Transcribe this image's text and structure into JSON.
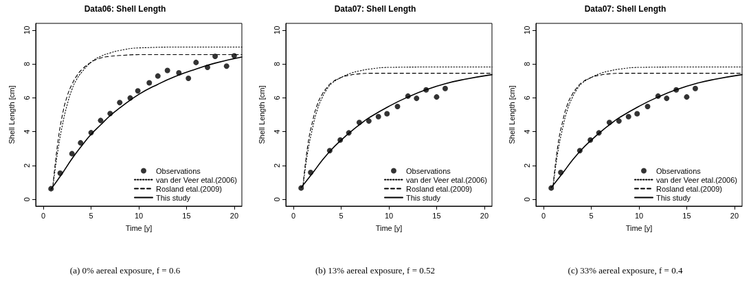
{
  "chart_data": [
    {
      "type": "scatter",
      "title": "Data06: Shell Length",
      "xlabel": "Time [y]",
      "ylabel": "Shell Length [cm]",
      "xlim": [
        -0.8,
        20.8
      ],
      "xticks": [
        0,
        5,
        10,
        15,
        20
      ],
      "ylim": [
        -0.4,
        10.4
      ],
      "yticks": [
        0,
        2,
        4,
        6,
        8,
        10
      ],
      "grid": false,
      "legend": "bottom right",
      "annotations": [
        "(a) 0% aereal exposure, f = 0.6"
      ],
      "series": [
        {
          "name": "Observations",
          "type": "scatter",
          "marker": "circle",
          "color": "#000000",
          "x": [
            0.8,
            1.76,
            3.0,
            3.9,
            5.0,
            6.0,
            7.0,
            8.0,
            9.1,
            9.9,
            11.1,
            12.0,
            13.0,
            14.2,
            15.2,
            16.0,
            17.2,
            18.0,
            19.2,
            20.0
          ],
          "values": [
            0.63,
            1.55,
            2.7,
            3.34,
            3.94,
            4.66,
            5.07,
            5.72,
            5.99,
            6.41,
            6.89,
            7.29,
            7.62,
            7.48,
            7.15,
            8.09,
            7.8,
            8.45,
            7.87,
            8.48
          ]
        },
        {
          "name": "van der Veer etal.(2006)",
          "type": "line",
          "marker": "none",
          "line_style": "dotted",
          "color": "#000000",
          "x": [
            1,
            1.5,
            2,
            2.5,
            3,
            3.5,
            4,
            5,
            6,
            7,
            8,
            10,
            15,
            20.8
          ],
          "values": [
            0.75,
            2.8,
            4.4,
            5.6,
            6.5,
            7.1,
            7.5,
            8.1,
            8.45,
            8.65,
            8.8,
            8.95,
            9.0,
            9.0
          ]
        },
        {
          "name": "Rosland etal.(2009)",
          "type": "line",
          "marker": "none",
          "line_style": "dashed",
          "color": "#000000",
          "x": [
            1,
            1.5,
            2,
            2.5,
            3,
            3.5,
            4,
            5,
            6,
            7,
            8,
            10,
            20.8
          ],
          "values": [
            0.8,
            3.3,
            5.0,
            6.1,
            6.8,
            7.3,
            7.65,
            8.1,
            8.35,
            8.45,
            8.5,
            8.55,
            8.55
          ]
        },
        {
          "name": "This study",
          "type": "line",
          "marker": "none",
          "line_style": "solid",
          "color": "#000000",
          "x": [
            0.8,
            2,
            3,
            4,
            5,
            6,
            7,
            8,
            10,
            12,
            14,
            16,
            18,
            20.8
          ],
          "values": [
            0.6,
            1.55,
            2.4,
            3.15,
            3.84,
            4.4,
            4.95,
            5.4,
            6.2,
            6.8,
            7.3,
            7.7,
            8.05,
            8.41
          ]
        }
      ]
    },
    {
      "type": "scatter",
      "title": "Data07: Shell Length",
      "xlabel": "Time [y]",
      "ylabel": "Shell Length [cm]",
      "xlim": [
        -0.8,
        20.8
      ],
      "xticks": [
        0,
        5,
        10,
        15,
        20
      ],
      "ylim": [
        -0.4,
        10.4
      ],
      "yticks": [
        0,
        2,
        4,
        6,
        8,
        10
      ],
      "grid": false,
      "legend": "bottom right",
      "annotations": [
        "(b) 13% aereal exposure, f = 0.52"
      ],
      "series": [
        {
          "name": "Observations",
          "type": "scatter",
          "marker": "circle",
          "color": "#000000",
          "x": [
            0.8,
            1.8,
            3.8,
            4.9,
            5.8,
            6.9,
            7.9,
            8.9,
            9.8,
            10.9,
            12.0,
            12.9,
            13.9,
            15.0,
            15.9
          ],
          "values": [
            0.67,
            1.59,
            2.88,
            3.51,
            3.93,
            4.54,
            4.63,
            4.89,
            5.06,
            5.49,
            6.1,
            5.97,
            6.47,
            6.05,
            6.55
          ]
        },
        {
          "name": "van der Veer etal.(2006)",
          "type": "line",
          "marker": "none",
          "line_style": "dotted",
          "color": "#000000",
          "x": [
            1,
            1.5,
            2,
            2.5,
            3,
            3.5,
            4,
            5,
            6,
            7,
            8,
            10,
            15,
            20.8
          ],
          "values": [
            0.75,
            2.8,
            4.2,
            5.3,
            6.0,
            6.5,
            6.85,
            7.2,
            7.45,
            7.6,
            7.7,
            7.8,
            7.82,
            7.82
          ]
        },
        {
          "name": "Rosland etal.(2009)",
          "type": "line",
          "marker": "none",
          "line_style": "dashed",
          "color": "#000000",
          "x": [
            1,
            1.5,
            2,
            2.5,
            3,
            3.5,
            4,
            5,
            6,
            7,
            8,
            20.8
          ],
          "values": [
            0.8,
            3.2,
            4.6,
            5.6,
            6.2,
            6.6,
            6.9,
            7.2,
            7.35,
            7.42,
            7.45,
            7.45
          ]
        },
        {
          "name": "This study",
          "type": "line",
          "marker": "none",
          "line_style": "solid",
          "color": "#000000",
          "x": [
            0.8,
            2,
            3,
            4,
            5,
            6,
            7,
            8,
            10,
            12,
            14,
            16,
            18,
            20.8
          ],
          "values": [
            0.7,
            1.55,
            2.3,
            2.95,
            3.5,
            4.0,
            4.45,
            4.85,
            5.5,
            6.05,
            6.5,
            6.85,
            7.1,
            7.37
          ]
        }
      ]
    },
    {
      "type": "scatter",
      "title": "Data07: Shell Length",
      "xlabel": "Time [y]",
      "ylabel": "Shell Length [cm]",
      "xlim": [
        -0.8,
        20.8
      ],
      "xticks": [
        0,
        5,
        10,
        15,
        20
      ],
      "ylim": [
        -0.4,
        10.4
      ],
      "yticks": [
        0,
        2,
        4,
        6,
        8,
        10
      ],
      "grid": false,
      "legend": "bottom right",
      "annotations": [
        "(c) 33% aereal exposure, f = 0.4"
      ],
      "series": [
        {
          "name": "Observations",
          "type": "scatter",
          "marker": "circle",
          "color": "#000000",
          "x": [
            0.8,
            1.8,
            3.8,
            4.9,
            5.8,
            6.9,
            7.9,
            8.9,
            9.8,
            10.9,
            12.0,
            12.9,
            13.9,
            15.0,
            15.9
          ],
          "values": [
            0.67,
            1.59,
            2.88,
            3.51,
            3.93,
            4.54,
            4.63,
            4.89,
            5.06,
            5.49,
            6.1,
            5.97,
            6.47,
            6.05,
            6.55
          ]
        },
        {
          "name": "van der Veer etal.(2006)",
          "type": "line",
          "marker": "none",
          "line_style": "dotted",
          "color": "#000000",
          "x": [
            1,
            1.5,
            2,
            2.5,
            3,
            3.5,
            4,
            5,
            6,
            7,
            8,
            10,
            15,
            20.8
          ],
          "values": [
            0.75,
            2.8,
            4.2,
            5.3,
            6.0,
            6.5,
            6.85,
            7.2,
            7.45,
            7.6,
            7.7,
            7.8,
            7.82,
            7.82
          ]
        },
        {
          "name": "Rosland etal.(2009)",
          "type": "line",
          "marker": "none",
          "line_style": "dashed",
          "color": "#000000",
          "x": [
            1,
            1.5,
            2,
            2.5,
            3,
            3.5,
            4,
            5,
            6,
            7,
            8,
            20.8
          ],
          "values": [
            0.8,
            3.2,
            4.6,
            5.6,
            6.2,
            6.6,
            6.9,
            7.2,
            7.35,
            7.42,
            7.45,
            7.45
          ]
        },
        {
          "name": "This study",
          "type": "line",
          "marker": "none",
          "line_style": "solid",
          "color": "#000000",
          "x": [
            0.8,
            2,
            3,
            4,
            5,
            6,
            7,
            8,
            10,
            12,
            14,
            16,
            18,
            20.8
          ],
          "values": [
            0.7,
            1.55,
            2.3,
            2.95,
            3.5,
            4.0,
            4.45,
            4.85,
            5.5,
            6.05,
            6.5,
            6.85,
            7.1,
            7.37
          ]
        }
      ]
    }
  ]
}
